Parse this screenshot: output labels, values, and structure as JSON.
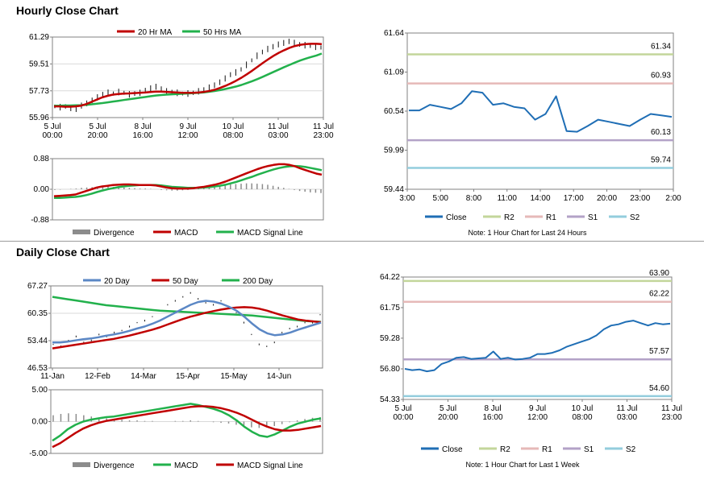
{
  "sections": {
    "hourly_title": "Hourly Close Chart",
    "daily_title": "Daily Close Chart"
  },
  "colors": {
    "price": "#111111",
    "ma_short": "#c00000",
    "ma_long": "#22b14c",
    "ma_day20": "#5b87c5",
    "close": "#1f6eb5",
    "r2": "#c3d69b",
    "r1": "#e6b9b8",
    "s1": "#b3a2c7",
    "s2": "#93cddd",
    "divergence": "#8c8c8c"
  },
  "chart_data": [
    {
      "id": "hourly_price",
      "type": "line",
      "title": "",
      "legend": [
        "20 Hr MA",
        "50 Hrs MA"
      ],
      "legend_position": "top",
      "x_labels": [
        "5 Jul\n00:00",
        "5 Jul\n20:00",
        "8 Jul\n16:00",
        "9 Jul\n12:00",
        "10 Jul\n08:00",
        "11 Jul\n03:00",
        "11 Jul\n23:00"
      ],
      "y_ticks": [
        "61.29",
        "59.51",
        "57.73",
        "55.96"
      ],
      "ylim": [
        55.96,
        61.29
      ],
      "series": [
        {
          "name": "Price",
          "values": [
            56.7,
            56.65,
            56.7,
            56.6,
            56.5,
            56.75,
            56.9,
            57.1,
            57.3,
            57.5,
            57.6,
            57.55,
            57.65,
            57.6,
            57.5,
            57.55,
            57.6,
            57.75,
            57.9,
            58.0,
            57.85,
            57.7,
            57.65,
            57.6,
            57.55,
            57.55,
            57.6,
            57.7,
            57.8,
            57.95,
            58.1,
            58.3,
            58.55,
            58.8,
            58.95,
            59.15,
            59.45,
            59.75,
            60.05,
            60.3,
            60.5,
            60.65,
            60.8,
            60.9,
            61.0,
            60.9,
            60.8,
            60.75,
            60.7,
            60.65,
            60.6
          ]
        },
        {
          "name": "20 Hr MA",
          "values": [
            56.7,
            56.7,
            56.68,
            56.68,
            56.7,
            56.75,
            56.85,
            57.0,
            57.15,
            57.3,
            57.4,
            57.48,
            57.52,
            57.55,
            57.56,
            57.58,
            57.6,
            57.62,
            57.65,
            57.68,
            57.68,
            57.66,
            57.64,
            57.62,
            57.6,
            57.6,
            57.6,
            57.62,
            57.66,
            57.72,
            57.8,
            57.92,
            58.06,
            58.22,
            58.4,
            58.6,
            58.82,
            59.06,
            59.32,
            59.58,
            59.82,
            60.05,
            60.25,
            60.42,
            60.58,
            60.7,
            60.78,
            60.82,
            60.84,
            60.84,
            60.82
          ]
        },
        {
          "name": "50 Hrs MA",
          "values": [
            56.75,
            56.75,
            56.76,
            56.76,
            56.77,
            56.78,
            56.8,
            56.84,
            56.88,
            56.92,
            56.97,
            57.02,
            57.07,
            57.12,
            57.17,
            57.22,
            57.27,
            57.32,
            57.37,
            57.42,
            57.45,
            57.48,
            57.5,
            57.52,
            57.54,
            57.56,
            57.58,
            57.6,
            57.63,
            57.67,
            57.72,
            57.78,
            57.85,
            57.93,
            58.02,
            58.12,
            58.24,
            58.37,
            58.51,
            58.66,
            58.82,
            58.98,
            59.14,
            59.3,
            59.45,
            59.6,
            59.74,
            59.86,
            59.97,
            60.07,
            60.2
          ]
        }
      ]
    },
    {
      "id": "hourly_macd",
      "type": "line",
      "legend": [
        "Divergence",
        "MACD",
        "MACD Signal Line"
      ],
      "legend_position": "bottom",
      "y_ticks": [
        "0.88",
        "0.00",
        "-0.88"
      ],
      "ylim": [
        -0.88,
        0.88
      ],
      "series": [
        {
          "name": "Divergence",
          "values": [
            -0.02,
            -0.01,
            0.0,
            0.01,
            0.02,
            0.04,
            0.05,
            0.06,
            0.07,
            0.08,
            0.08,
            0.07,
            0.06,
            0.05,
            0.04,
            0.03,
            0.02,
            0.02,
            0.01,
            0.0,
            -0.02,
            -0.03,
            -0.04,
            -0.04,
            -0.03,
            -0.02,
            0.0,
            0.02,
            0.04,
            0.06,
            0.08,
            0.1,
            0.12,
            0.14,
            0.15,
            0.16,
            0.17,
            0.17,
            0.16,
            0.15,
            0.13,
            0.1,
            0.07,
            0.04,
            0.01,
            -0.02,
            -0.05,
            -0.07,
            -0.09,
            -0.1,
            -0.11
          ]
        },
        {
          "name": "MACD",
          "values": [
            -0.2,
            -0.19,
            -0.18,
            -0.17,
            -0.15,
            -0.1,
            -0.05,
            0.0,
            0.05,
            0.08,
            0.1,
            0.12,
            0.13,
            0.14,
            0.14,
            0.13,
            0.12,
            0.12,
            0.12,
            0.11,
            0.08,
            0.05,
            0.03,
            0.02,
            0.02,
            0.02,
            0.03,
            0.05,
            0.07,
            0.1,
            0.13,
            0.17,
            0.22,
            0.28,
            0.34,
            0.4,
            0.46,
            0.52,
            0.58,
            0.63,
            0.67,
            0.7,
            0.72,
            0.72,
            0.7,
            0.66,
            0.6,
            0.55,
            0.5,
            0.45,
            0.42
          ]
        },
        {
          "name": "MACD Signal Line",
          "values": [
            -0.25,
            -0.25,
            -0.24,
            -0.23,
            -0.22,
            -0.2,
            -0.17,
            -0.13,
            -0.08,
            -0.04,
            0.0,
            0.03,
            0.06,
            0.08,
            0.1,
            0.11,
            0.12,
            0.12,
            0.12,
            0.12,
            0.11,
            0.09,
            0.07,
            0.06,
            0.05,
            0.04,
            0.04,
            0.04,
            0.05,
            0.06,
            0.08,
            0.1,
            0.13,
            0.17,
            0.21,
            0.26,
            0.31,
            0.36,
            0.42,
            0.47,
            0.52,
            0.57,
            0.61,
            0.64,
            0.66,
            0.67,
            0.66,
            0.64,
            0.61,
            0.58,
            0.55
          ]
        }
      ]
    },
    {
      "id": "hourly_pivot",
      "type": "line",
      "note": "Note: 1 Hour Chart for Last 24 Hours",
      "legend": [
        "Close",
        "R2",
        "R1",
        "S1",
        "S2"
      ],
      "legend_position": "bottom",
      "x_labels": [
        "3:00",
        "5:00",
        "8:00",
        "11:00",
        "14:00",
        "17:00",
        "20:00",
        "23:00",
        "2:00"
      ],
      "y_ticks": [
        "61.64",
        "61.09",
        "60.54",
        "59.99",
        "59.44"
      ],
      "ylim": [
        59.44,
        61.64
      ],
      "levels": [
        {
          "name": "R2",
          "value": 61.34,
          "label": "61.34"
        },
        {
          "name": "R1",
          "value": 60.93,
          "label": "60.93"
        },
        {
          "name": "S1",
          "value": 60.13,
          "label": "60.13"
        },
        {
          "name": "S2",
          "value": 59.74,
          "label": "59.74"
        }
      ],
      "series": [
        {
          "name": "Close",
          "values": [
            60.55,
            60.55,
            60.63,
            60.6,
            60.57,
            60.65,
            60.82,
            60.8,
            60.63,
            60.65,
            60.6,
            60.58,
            60.42,
            60.5,
            60.75,
            60.26,
            60.25,
            60.33,
            60.42,
            60.39,
            60.36,
            60.33,
            60.42,
            60.5,
            60.48,
            60.46
          ]
        }
      ]
    },
    {
      "id": "daily_price",
      "type": "line",
      "legend": [
        "20 Day",
        "50 Day",
        "200 Day"
      ],
      "legend_position": "top",
      "x_labels": [
        "11-Jan",
        "12-Feb",
        "14-Mar",
        "15-Apr",
        "15-May",
        "14-Jun"
      ],
      "y_ticks": [
        "67.27",
        "60.35",
        "53.44",
        "46.53"
      ],
      "ylim": [
        46.53,
        67.27
      ],
      "series": [
        {
          "name": "Price",
          "values": [
            52.5,
            52.0,
            53.5,
            54.5,
            53.0,
            53.5,
            55.0,
            54.5,
            55.5,
            56.0,
            57.0,
            58.0,
            58.5,
            59.5,
            61.0,
            62.5,
            63.5,
            64.5,
            65.5,
            64.0,
            63.0,
            62.5,
            63.5,
            62.0,
            60.5,
            58.0,
            55.0,
            52.5,
            52.0,
            53.0,
            55.5,
            56.5,
            57.0,
            58.0,
            58.0,
            60.0
          ]
        },
        {
          "name": "20 Day",
          "values": [
            53.0,
            53.0,
            53.2,
            53.5,
            53.8,
            54.0,
            54.3,
            54.7,
            55.0,
            55.4,
            55.9,
            56.5,
            57.0,
            57.7,
            58.5,
            59.5,
            60.5,
            61.5,
            62.5,
            63.2,
            63.5,
            63.3,
            62.8,
            62.0,
            61.0,
            59.5,
            57.8,
            56.3,
            55.3,
            54.8,
            55.0,
            55.5,
            56.2,
            56.8,
            57.4,
            58.0
          ]
        },
        {
          "name": "50 Day",
          "values": [
            51.5,
            51.8,
            52.1,
            52.4,
            52.7,
            53.0,
            53.3,
            53.6,
            53.9,
            54.3,
            54.7,
            55.2,
            55.7,
            56.2,
            56.8,
            57.5,
            58.2,
            58.9,
            59.5,
            60.0,
            60.5,
            60.9,
            61.3,
            61.6,
            61.8,
            61.9,
            61.8,
            61.5,
            61.0,
            60.4,
            59.8,
            59.3,
            58.8,
            58.5,
            58.3,
            58.1
          ]
        },
        {
          "name": "200 Day",
          "values": [
            64.5,
            64.2,
            63.9,
            63.6,
            63.3,
            63.0,
            62.7,
            62.4,
            62.2,
            62.0,
            61.8,
            61.6,
            61.4,
            61.2,
            61.0,
            60.9,
            60.8,
            60.7,
            60.6,
            60.5,
            60.4,
            60.3,
            60.2,
            60.1,
            60.0,
            59.9,
            59.8,
            59.6,
            59.4,
            59.2,
            59.0,
            58.8,
            58.6,
            58.4,
            58.3,
            58.2
          ]
        }
      ]
    },
    {
      "id": "daily_macd",
      "type": "line",
      "legend": [
        "Divergence",
        "MACD",
        "MACD Signal Line"
      ],
      "legend_position": "bottom",
      "y_ticks": [
        "5.00",
        "0.00",
        "-5.00"
      ],
      "ylim": [
        -5.0,
        5.0
      ],
      "series": [
        {
          "name": "Divergence",
          "values": [
            1.0,
            1.2,
            1.3,
            1.2,
            1.0,
            0.8,
            0.6,
            0.5,
            0.4,
            0.3,
            0.2,
            0.2,
            0.1,
            0.1,
            0.0,
            0.0,
            0.1,
            0.1,
            0.2,
            0.1,
            0.0,
            -0.1,
            -0.2,
            -0.3,
            -0.5,
            -0.7,
            -0.9,
            -1.0,
            -0.9,
            -0.7,
            -0.4,
            -0.1,
            0.2,
            0.4,
            0.6,
            0.7
          ]
        },
        {
          "name": "MACD",
          "values": [
            -3.0,
            -2.2,
            -1.2,
            -0.5,
            0.0,
            0.3,
            0.5,
            0.7,
            0.8,
            1.0,
            1.2,
            1.4,
            1.6,
            1.8,
            2.0,
            2.2,
            2.4,
            2.6,
            2.8,
            2.6,
            2.3,
            2.0,
            1.6,
            1.0,
            0.2,
            -0.8,
            -1.6,
            -2.2,
            -2.4,
            -2.0,
            -1.4,
            -0.8,
            -0.3,
            0.0,
            0.3,
            0.5
          ]
        },
        {
          "name": "MACD Signal Line",
          "values": [
            -4.0,
            -3.4,
            -2.6,
            -1.8,
            -1.1,
            -0.6,
            -0.2,
            0.1,
            0.3,
            0.5,
            0.7,
            0.9,
            1.1,
            1.3,
            1.5,
            1.7,
            1.9,
            2.1,
            2.3,
            2.4,
            2.4,
            2.3,
            2.1,
            1.8,
            1.4,
            0.9,
            0.3,
            -0.3,
            -0.8,
            -1.2,
            -1.4,
            -1.4,
            -1.3,
            -1.1,
            -0.9,
            -0.7
          ]
        }
      ]
    },
    {
      "id": "weekly_pivot",
      "type": "line",
      "note": "Note: 1 Hour Chart for Last 1 Week",
      "legend": [
        "Close",
        "R2",
        "R1",
        "S1",
        "S2"
      ],
      "legend_position": "bottom",
      "x_labels": [
        "5 Jul\n00:00",
        "5 Jul\n20:00",
        "8 Jul\n16:00",
        "9 Jul\n12:00",
        "10 Jul\n08:00",
        "11 Jul\n03:00",
        "11 Jul\n23:00"
      ],
      "y_ticks": [
        "64.22",
        "61.75",
        "59.28",
        "56.80",
        "54.33"
      ],
      "ylim": [
        54.33,
        64.22
      ],
      "levels": [
        {
          "name": "R2",
          "value": 63.9,
          "label": "63.90"
        },
        {
          "name": "R1",
          "value": 62.22,
          "label": "62.22"
        },
        {
          "name": "S1",
          "value": 57.57,
          "label": "57.57"
        },
        {
          "name": "S2",
          "value": 54.6,
          "label": "54.60"
        }
      ],
      "series": [
        {
          "name": "Close",
          "values": [
            56.8,
            56.7,
            56.75,
            56.6,
            56.7,
            57.2,
            57.4,
            57.7,
            57.75,
            57.6,
            57.65,
            57.7,
            58.2,
            57.6,
            57.7,
            57.55,
            57.6,
            57.7,
            58.0,
            58.0,
            58.1,
            58.3,
            58.6,
            58.8,
            59.0,
            59.2,
            59.5,
            60.0,
            60.3,
            60.4,
            60.6,
            60.7,
            60.5,
            60.3,
            60.5,
            60.4,
            60.45
          ]
        }
      ]
    }
  ]
}
